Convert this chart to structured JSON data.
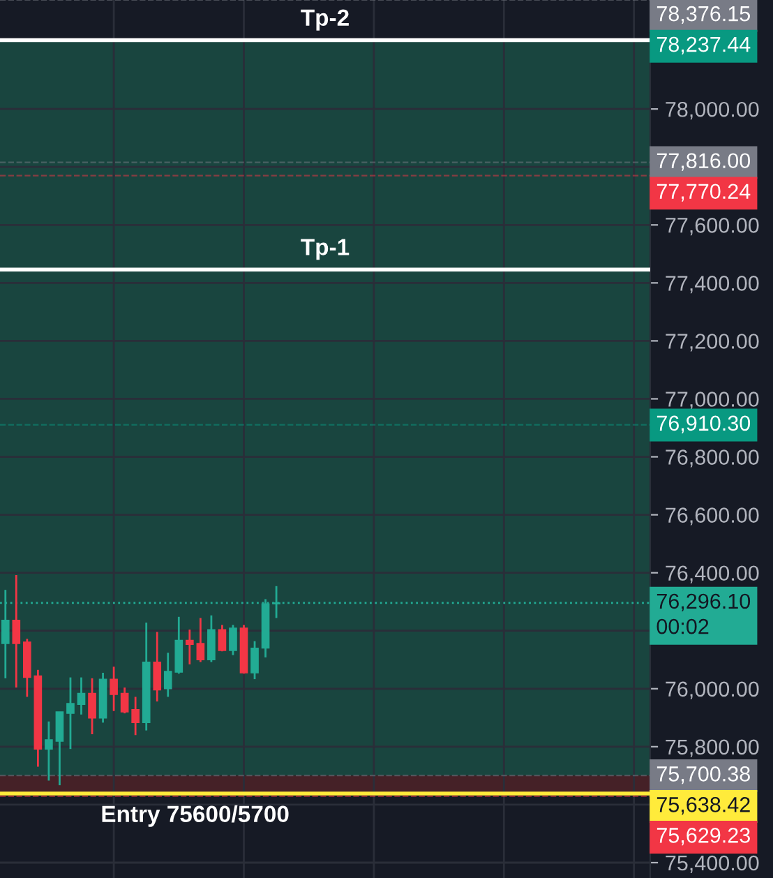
{
  "chart_data": {
    "type": "candlestick",
    "categories": [
      null,
      null,
      null,
      null,
      null,
      null,
      null,
      null,
      null,
      null,
      null,
      null,
      null,
      null,
      null,
      null,
      null,
      null,
      null,
      null,
      null,
      null,
      null,
      null,
      null,
      null,
      null,
      null,
      null,
      null,
      null,
      null,
      null,
      null,
      null,
      null,
      null,
      null,
      null,
      null,
      null,
      null,
      null,
      null,
      null,
      null,
      null,
      null,
      null,
      null,
      null,
      null,
      null,
      null,
      null,
      null,
      null,
      null,
      null,
      null
    ],
    "ohlc": [
      [
        76156,
        76341,
        76036,
        76236
      ],
      [
        76236,
        76392,
        76004,
        76156
      ],
      [
        76161,
        76172,
        75972,
        76039
      ],
      [
        76044,
        76065,
        75731,
        75792
      ],
      [
        75792,
        75887,
        75683,
        75824
      ],
      [
        75819,
        75920,
        75667,
        75920
      ],
      [
        75915,
        76039,
        75792,
        75949
      ],
      [
        75946,
        76039,
        75911,
        75984
      ],
      [
        75984,
        76036,
        75843,
        75899
      ],
      [
        75899,
        76055,
        75883,
        76033
      ],
      [
        76033,
        76076,
        75923,
        75980
      ],
      [
        75984,
        76004,
        75915,
        75920
      ],
      [
        75928,
        75972,
        75840,
        75883
      ],
      [
        75883,
        76228,
        75856,
        76092
      ],
      [
        76092,
        76196,
        75956,
        75996
      ],
      [
        76000,
        76124,
        75972,
        76060
      ],
      [
        76057,
        76248,
        76052,
        76167
      ],
      [
        76167,
        76204,
        76084,
        76153
      ],
      [
        76156,
        76244,
        76092,
        76100
      ],
      [
        76100,
        76253,
        76092,
        76204
      ],
      [
        76204,
        76220,
        76129,
        76132
      ],
      [
        76132,
        76220,
        76116,
        76209
      ],
      [
        76209,
        76220,
        76052,
        76055
      ],
      [
        76055,
        76164,
        76033,
        76140
      ],
      [
        76140,
        76309,
        76108,
        76293
      ],
      [
        76293,
        76354,
        76244,
        76296.1
      ],
      null,
      null,
      null,
      null,
      null,
      null,
      null,
      null,
      null,
      null,
      null,
      null,
      null,
      null,
      null,
      null,
      null,
      null,
      null,
      null,
      null,
      null,
      null,
      null,
      null,
      null,
      null,
      null,
      null,
      null,
      null,
      null,
      null,
      null
    ],
    "colors": [
      "#22ab94",
      "#f23645",
      "#f23645",
      "#f23645",
      "#22ab94",
      "#22ab94",
      "#22ab94",
      "#22ab94",
      "#f23645",
      "#22ab94",
      "#f23645",
      "#f23645",
      "#f23645",
      "#22ab94",
      "#f23645",
      "#22ab94",
      "#22ab94",
      "#f23645",
      "#f23645",
      "#22ab94",
      "#f23645",
      "#22ab94",
      "#f23645",
      "#22ab94",
      "#22ab94",
      "#22ab94",
      null,
      null,
      null,
      null,
      null,
      null,
      null,
      null,
      null,
      null,
      null,
      null,
      null,
      null,
      null,
      null,
      null,
      null,
      null,
      null,
      null,
      null,
      null,
      null,
      null,
      null,
      null,
      null,
      null,
      null,
      null,
      null,
      null,
      null
    ],
    "ylim": [
      75347,
      78376
    ],
    "yticks": [
      {
        "value": 75400,
        "label": "75,400.00"
      },
      {
        "value": 75600,
        "label": null
      },
      {
        "value": 75800,
        "label": "75,800.00"
      },
      {
        "value": 76000,
        "label": "76,000.00"
      },
      {
        "value": 76200,
        "label": null
      },
      {
        "value": 76400,
        "label": "76,400.00"
      },
      {
        "value": 76600,
        "label": "76,600.00"
      },
      {
        "value": 76800,
        "label": "76,800.00"
      },
      {
        "value": 77000,
        "label": "77,000.00"
      },
      {
        "value": 77200,
        "label": "77,200.00"
      },
      {
        "value": 77400,
        "label": "77,400.00"
      },
      {
        "value": 77600,
        "label": "77,600.00"
      },
      {
        "value": 77800,
        "label": null
      },
      {
        "value": 78000,
        "label": "78,000.00"
      }
    ],
    "tick_labels": "y",
    "grid": true,
    "bands": [
      {
        "axis": "y",
        "from": 75700.38,
        "to": 78237.44,
        "color": "#1a4a42"
      },
      {
        "axis": "y",
        "from": 75638.42,
        "to": 75700.38,
        "color": "#4a2228"
      }
    ],
    "ref_lines": [
      {
        "axis": "y",
        "value": 78237.44,
        "label": "78,237.44",
        "color": "#ffffff",
        "line_style": "solid"
      },
      {
        "axis": "y",
        "value": 77446,
        "color": "#ffffff",
        "line_style": "solid"
      },
      {
        "axis": "y",
        "value": 76296.1,
        "label": "76,296.10\n00:02",
        "color": "#22ab94",
        "line_style": "dotted"
      },
      {
        "axis": "y",
        "value": 75638.42,
        "label": "75,638.42",
        "color": "#ffeb3b",
        "line_style": "solid"
      },
      {
        "axis": "y",
        "value": 78376.15,
        "label": "78,376.15",
        "color": "#787b86",
        "line_style": "dashed"
      },
      {
        "axis": "y",
        "value": 77816.0,
        "label": "77,816.00",
        "color": "#787b86",
        "line_style": "dashed"
      },
      {
        "axis": "y",
        "value": 77770.24,
        "label": "77,770.24",
        "color": "#f23645",
        "line_style": "dashed"
      },
      {
        "axis": "y",
        "value": 76910.3,
        "label": "76,910.30",
        "color": "#089981",
        "line_style": "dashed"
      },
      {
        "axis": "y",
        "value": 75700.38,
        "label": "75,700.38",
        "color": "#787b86",
        "line_style": "dashed"
      },
      {
        "axis": "y",
        "value": 75629.23,
        "label": "75,629.23",
        "color": "#f23645",
        "line_style": "dashed"
      }
    ],
    "annotations": [
      {
        "text": "Tp-2",
        "y": 78237.44
      },
      {
        "text": "Tp-1",
        "y": 77446
      },
      {
        "text": "Entry 75600/5700",
        "y": 75638.42
      }
    ]
  }
}
